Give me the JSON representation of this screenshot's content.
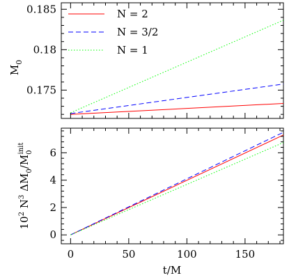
{
  "chart_data": [
    {
      "type": "line",
      "panel": "top",
      "xlim": [
        -8,
        183
      ],
      "ylim": [
        0.1715,
        0.1858
      ],
      "yticks": [
        0.175,
        0.18,
        0.185
      ],
      "ytick_labels": [
        "0.175",
        "0.18",
        "0.185"
      ],
      "xticks": [
        0,
        50,
        100,
        150
      ],
      "xtick_labels": [],
      "ylabel": "M",
      "ylabel_sub": "0",
      "grid": false,
      "legend_placement": "top-left",
      "series": [
        {
          "name": "N = 2",
          "color": "#ff0000",
          "dash": "solid",
          "x": [
            0,
            183
          ],
          "y": [
            0.172,
            0.17335
          ]
        },
        {
          "name": "N = 3/2",
          "color": "#0000ff",
          "dash": "dashed",
          "x": [
            0,
            183
          ],
          "y": [
            0.1721,
            0.17575
          ]
        },
        {
          "name": "N = 1",
          "color": "#00ff00",
          "dash": "dotted",
          "x": [
            0,
            183
          ],
          "y": [
            0.1722,
            0.18365
          ]
        }
      ]
    },
    {
      "type": "line",
      "panel": "bottom",
      "xlim": [
        -8,
        183
      ],
      "ylim": [
        -0.65,
        7.8
      ],
      "yticks": [
        0,
        2,
        4,
        6
      ],
      "ytick_labels": [
        "0",
        "2",
        "4",
        "6"
      ],
      "xticks": [
        0,
        50,
        100,
        150
      ],
      "xtick_labels": [
        "0",
        "50",
        "100",
        "150"
      ],
      "xlabel": "t/M",
      "ylabel_parts": {
        "a": "10",
        "a_sup": "2",
        "b": " N",
        "b_sup": "3",
        "c": " ΔM",
        "c_sub": "0",
        "d": "/M",
        "d_sub": "0",
        "d_sup": "init"
      },
      "grid": false,
      "series": [
        {
          "name": "N = 2",
          "color": "#ff0000",
          "dash": "solid",
          "x": [
            0,
            183
          ],
          "y": [
            0,
            7.3
          ]
        },
        {
          "name": "N = 3/2",
          "color": "#0000ff",
          "dash": "dashed",
          "x": [
            0,
            183
          ],
          "y": [
            0,
            7.5
          ]
        },
        {
          "name": "N = 1",
          "color": "#00ff00",
          "dash": "dotted",
          "x": [
            0,
            183
          ],
          "y": [
            0,
            6.75
          ]
        }
      ]
    }
  ]
}
